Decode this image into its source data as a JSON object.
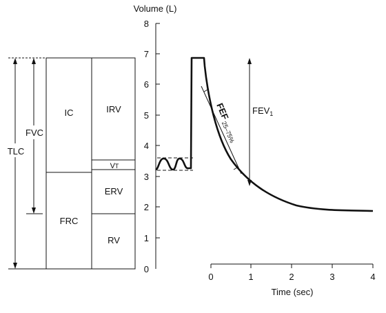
{
  "volume_bars": {
    "tlc": "TLC",
    "fvc": "FVC",
    "ic": "IC",
    "frc": "FRC",
    "irv": "IRV",
    "vt_main": "V",
    "vt_sub": "T",
    "erv": "ERV",
    "rv": "RV"
  },
  "axes": {
    "y_label": "Volume (L)",
    "y_ticks": [
      "8",
      "7",
      "6",
      "5",
      "4",
      "3",
      "2",
      "1",
      "0"
    ],
    "x_label": "Time (sec)",
    "x_ticks": [
      "0",
      "1",
      "2",
      "3",
      "4"
    ]
  },
  "annotations": {
    "fef_main": "FEF",
    "fef_sub": "25–75%",
    "fev_main": "FEV",
    "fev_sub": "1"
  }
}
